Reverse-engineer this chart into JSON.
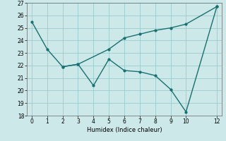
{
  "xlabel": "Humidex (Indice chaleur)",
  "background_color": "#cce8e8",
  "grid_color": "#99cccc",
  "line_color": "#1a7070",
  "line1_x": [
    0,
    1,
    2,
    3,
    5,
    6,
    7,
    8,
    9,
    10,
    12
  ],
  "line1_y": [
    25.5,
    23.3,
    21.9,
    22.1,
    23.3,
    24.2,
    24.5,
    24.8,
    25.0,
    25.3,
    26.7
  ],
  "line2_x": [
    2,
    3,
    4,
    5,
    6,
    7,
    8,
    9,
    10,
    12
  ],
  "line2_y": [
    21.9,
    22.1,
    20.4,
    22.5,
    21.6,
    21.5,
    21.2,
    20.1,
    18.3,
    26.7
  ],
  "ylim": [
    18,
    27
  ],
  "xlim": [
    -0.3,
    12.3
  ],
  "yticks": [
    18,
    19,
    20,
    21,
    22,
    23,
    24,
    25,
    26,
    27
  ],
  "xticks": [
    0,
    1,
    2,
    3,
    4,
    5,
    6,
    7,
    8,
    9,
    10,
    12
  ]
}
